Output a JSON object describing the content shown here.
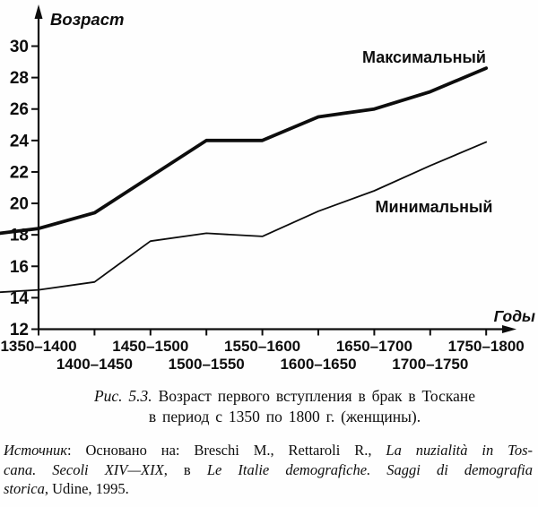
{
  "chart_data": {
    "type": "line",
    "title": "",
    "ylabel": "Возраст",
    "xlabel": "Годы",
    "ylim": [
      12,
      30
    ],
    "yticks": [
      12,
      14,
      16,
      18,
      20,
      22,
      24,
      26,
      28,
      30
    ],
    "grid": false,
    "legend_position": "inline-annotations",
    "categories": [
      "1350–1400",
      "1400–1450",
      "1450–1500",
      "1500–1550",
      "1550–1600",
      "1600–1650",
      "1650–1700",
      "1700–1750",
      "1750–1800"
    ],
    "series": [
      {
        "name": "Максимальный",
        "values": [
          18.4,
          19.4,
          21.7,
          24.0,
          24.0,
          25.5,
          26.0,
          27.1,
          28.6
        ]
      },
      {
        "name": "Минимальный",
        "values": [
          14.5,
          15.0,
          17.6,
          18.1,
          17.9,
          19.5,
          20.8,
          22.4,
          23.9
        ]
      }
    ]
  },
  "caption": {
    "fig_label": "Рис. 5.3.",
    "line1": "Возраст первого вступления в брак в Тоскане",
    "line2": "в период с 1350 по 1800 г. (женщины)."
  },
  "source": {
    "lines": [
      {
        "justified": true,
        "segments": [
          {
            "t": "Источник",
            "i": true
          },
          {
            "t": ": Основано на: Breschi M., Rettaroli R., ",
            "i": false
          },
          {
            "t": "La nuzialità in Tos-",
            "i": true
          }
        ]
      },
      {
        "justified": true,
        "segments": [
          {
            "t": "cana. Secoli XIV—XIX",
            "i": true
          },
          {
            "t": ", в ",
            "i": false
          },
          {
            "t": "Le Italie demografiche. Saggi di demografia",
            "i": true
          }
        ]
      },
      {
        "justified": false,
        "segments": [
          {
            "t": "storica",
            "i": true
          },
          {
            "t": ", Udine, 1995.",
            "i": false
          }
        ]
      }
    ]
  },
  "colors": {
    "ink": "#0d0d0d",
    "paper": "#fefefe"
  }
}
